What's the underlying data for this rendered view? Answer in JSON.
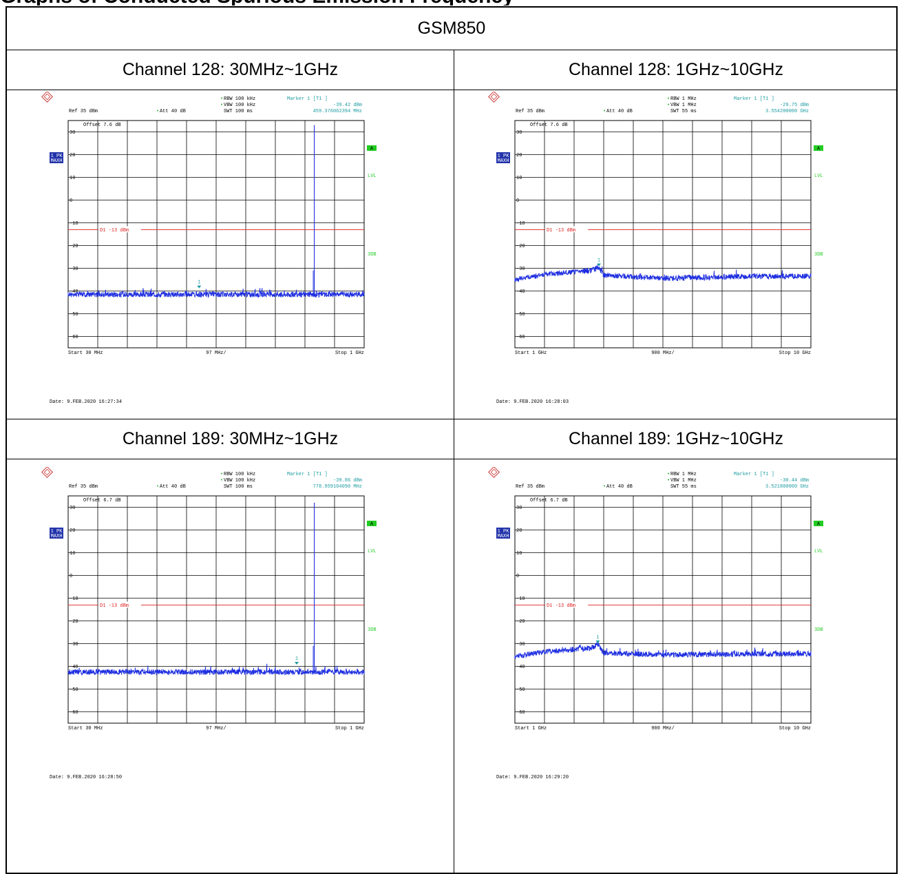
{
  "page_heading": "Graphs of Conducted Spurious Emission Frequency",
  "table": {
    "band": "GSM850",
    "panels": [
      {
        "title": "Channel 128: 30MHz~1GHz",
        "rbw": "RBW 100 kHz",
        "vbw": "VBW 100 kHz",
        "swt": "SWT 100 ms",
        "ref": "Ref  35 dBm",
        "att": "Att  40 dB",
        "marker_title": "Marker 1 [T1 ]",
        "marker_level": "-39.42 dBm",
        "marker_freq": "459.376062394 MHz",
        "offset": "Offset  7.6 dB",
        "start": "Start  30 MHz",
        "span": "97 MHz/",
        "stop": "Stop  1 GHz",
        "date": "Date: 9.FEB.2020  16:27:34"
      },
      {
        "title": "Channel 128: 1GHz~10GHz",
        "rbw": "RBW 1 MHz",
        "vbw": "VBW 1 MHz",
        "swt": "SWT 55 ms",
        "ref": "Ref  35 dBm",
        "att": "Att  40 dB",
        "marker_title": "Marker 1 [T1 ]",
        "marker_level": "-29.75 dBm",
        "marker_freq": "3.554200000 GHz",
        "offset": "Offset  7.6 dB",
        "start": "Start  1 GHz",
        "span": "900 MHz/",
        "stop": "Stop  10 GHz",
        "date": "Date: 9.FEB.2020  16:28:03"
      },
      {
        "title": "Channel 189: 30MHz~1GHz",
        "rbw": "RBW 100 kHz",
        "vbw": "VBW 100 kHz",
        "swt": "SWT 100 ms",
        "ref": "Ref  35 dBm",
        "att": "Att  40 dB",
        "marker_title": "Marker 1 [T1 ]",
        "marker_level": "-39.86 dBm",
        "marker_freq": "778.959104090 MHz",
        "offset": "Offset  6.7 dB",
        "start": "Start  30 MHz",
        "span": "97 MHz/",
        "stop": "Stop  1 GHz",
        "date": "Date: 9.FEB.2020  16:28:50"
      },
      {
        "title": "Channel 189: 1GHz~10GHz",
        "rbw": "RBW 1 MHz",
        "vbw": "VBW 1 MHz",
        "swt": "SWT 55 ms",
        "ref": "Ref  35 dBm",
        "att": "Att  40 dB",
        "marker_title": "Marker 1 [T1 ]",
        "marker_level": "-30.44 dBm",
        "marker_freq": "3.521800000 GHz",
        "offset": "Offset  6.7 dB",
        "start": "Start  1 GHz",
        "span": "900 MHz/",
        "stop": "Stop  10 GHz",
        "date": "Date: 9.FEB.2020  16:29:20"
      }
    ],
    "side_labels": {
      "trace": "1 PK",
      "trace2": "MAXH",
      "a": "A",
      "lvl": "LVL",
      "sdb": "3DB"
    },
    "display_line_label": "D1  -13  dBm"
  },
  "colors": {
    "trace": "#1f2fe0",
    "limit": "#e02020",
    "cyan": "#1a9aa0",
    "green": "#22cc22",
    "grid": "#000000"
  },
  "chart_data": [
    {
      "type": "line",
      "title": "Channel 128: 30MHz~1GHz",
      "x_unit": "MHz",
      "xlim": [
        30,
        1000
      ],
      "ylim": [
        -65,
        35
      ],
      "y_ticks": [
        30,
        20,
        10,
        0,
        -10,
        -20,
        -30,
        -40,
        -50,
        -60
      ],
      "limit_line": -13,
      "noise_floor": -41.5,
      "spikes": [
        {
          "x": 836.6,
          "y": 33
        }
      ],
      "marker": {
        "x": 459.38,
        "y": -39.42
      }
    },
    {
      "type": "line",
      "title": "Channel 128: 1GHz~10GHz",
      "x_unit": "GHz",
      "xlim": [
        1,
        10
      ],
      "ylim": [
        -65,
        35
      ],
      "y_ticks": [
        30,
        20,
        10,
        0,
        -10,
        -20,
        -30,
        -40,
        -50,
        -60
      ],
      "limit_line": -13,
      "noise_profile": [
        [
          1,
          -35
        ],
        [
          2,
          -32.5
        ],
        [
          3.3,
          -31
        ],
        [
          3.55,
          -29.75
        ],
        [
          3.7,
          -33
        ],
        [
          5.5,
          -34.5
        ],
        [
          8,
          -33.5
        ],
        [
          10,
          -33.5
        ]
      ],
      "marker": {
        "x": 3.554,
        "y": -29.75
      }
    },
    {
      "type": "line",
      "title": "Channel 189: 30MHz~1GHz",
      "x_unit": "MHz",
      "xlim": [
        30,
        1000
      ],
      "ylim": [
        -65,
        35
      ],
      "y_ticks": [
        30,
        20,
        10,
        0,
        -10,
        -20,
        -30,
        -40,
        -50,
        -60
      ],
      "limit_line": -13,
      "noise_floor": -42.5,
      "spikes": [
        {
          "x": 836.6,
          "y": 32
        }
      ],
      "marker": {
        "x": 778.96,
        "y": -39.86
      }
    },
    {
      "type": "line",
      "title": "Channel 189: 1GHz~10GHz",
      "x_unit": "GHz",
      "xlim": [
        1,
        10
      ],
      "ylim": [
        -65,
        35
      ],
      "y_ticks": [
        30,
        20,
        10,
        0,
        -10,
        -20,
        -30,
        -40,
        -50,
        -60
      ],
      "limit_line": -13,
      "noise_profile": [
        [
          1,
          -35.5
        ],
        [
          2,
          -33.5
        ],
        [
          3.3,
          -32
        ],
        [
          3.52,
          -30.44
        ],
        [
          3.7,
          -34
        ],
        [
          5.5,
          -35
        ],
        [
          8,
          -34.5
        ],
        [
          10,
          -34.5
        ]
      ],
      "marker": {
        "x": 3.5218,
        "y": -30.44
      }
    }
  ]
}
